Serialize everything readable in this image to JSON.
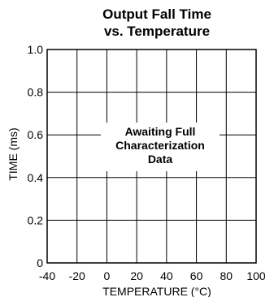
{
  "chart_data": {
    "type": "line",
    "title_lines": [
      "Output Fall Time",
      "vs. Temperature"
    ],
    "xlabel": "TEMPERATURE (°C)",
    "ylabel": "TIME (ms)",
    "xlim": [
      -40,
      100
    ],
    "ylim": [
      0,
      1.0
    ],
    "x_ticks": [
      -40,
      -20,
      0,
      20,
      40,
      60,
      80,
      100
    ],
    "x_tick_labels": [
      "-40",
      "-20",
      "0",
      "20",
      "40",
      "60",
      "80",
      "100"
    ],
    "y_ticks": [
      0,
      0.2,
      0.4,
      0.6,
      0.8,
      1.0
    ],
    "y_tick_labels": [
      "0",
      "0.2",
      "0.4",
      "0.6",
      "0.8",
      "1.0"
    ],
    "grid": true,
    "series": [],
    "annotation_lines": [
      "Awaiting Full",
      "Characterization",
      "Data"
    ]
  }
}
